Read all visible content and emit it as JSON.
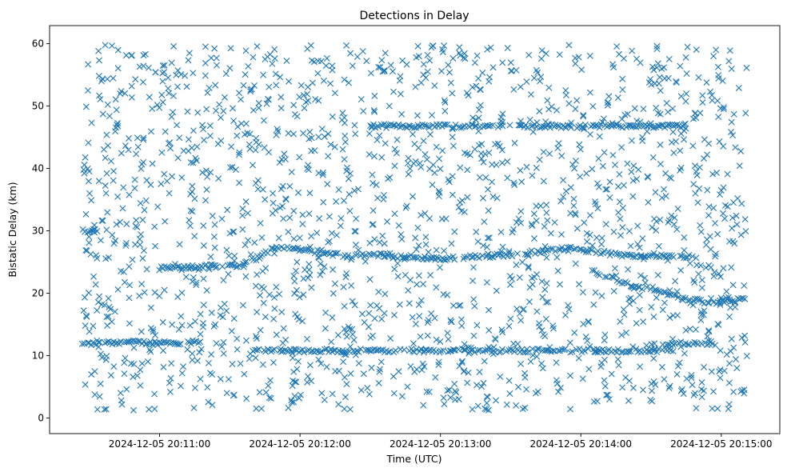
{
  "chart_data": {
    "type": "scatter",
    "title": "Detections in Delay",
    "xlabel": "Time (UTC)",
    "ylabel": "Bistatic Delay (km)",
    "x_unit": "time (UTC)",
    "xlim": [
      "2024-12-05 20:10:13",
      "2024-12-05 20:15:25"
    ],
    "ylim": [
      -2.5,
      62.9
    ],
    "xticks": [
      {
        "t": "2024-12-05 20:11:00",
        "label": "2024-12-05 20:11:00"
      },
      {
        "t": "2024-12-05 20:12:00",
        "label": "2024-12-05 20:12:00"
      },
      {
        "t": "2024-12-05 20:13:00",
        "label": "2024-12-05 20:13:00"
      },
      {
        "t": "2024-12-05 20:14:00",
        "label": "2024-12-05 20:14:00"
      },
      {
        "t": "2024-12-05 20:15:00",
        "label": "2024-12-05 20:15:00"
      }
    ],
    "yticks": [
      0,
      10,
      20,
      30,
      40,
      50,
      60
    ],
    "grid": false,
    "legend": "none",
    "marker": "x",
    "color": "#1f77b4",
    "data_range": {
      "x": [
        "2024-12-05 20:10:27",
        "2024-12-05 20:15:11"
      ],
      "y": [
        1.2,
        59.8
      ]
    },
    "tracks": [
      {
        "x": [
          "2024-12-05 20:10:27",
          "2024-12-05 20:10:45",
          "2024-12-05 20:11:00",
          "2024-12-05 20:11:18"
        ],
        "y": [
          11.8,
          12.2,
          12.0,
          12.2
        ]
      },
      {
        "x": [
          "2024-12-05 20:10:28",
          "2024-12-05 20:10:34"
        ],
        "y": [
          30.0,
          30.0
        ]
      },
      {
        "x": [
          "2024-12-05 20:11:00",
          "2024-12-05 20:11:35",
          "2024-12-05 20:11:50",
          "2024-12-05 20:12:20",
          "2024-12-05 20:12:40"
        ],
        "y": [
          24.0,
          24.5,
          27.5,
          26.0,
          26.2
        ]
      },
      {
        "x": [
          "2024-12-05 20:12:30",
          "2024-12-05 20:13:20",
          "2024-12-05 20:13:50",
          "2024-12-05 20:14:20",
          "2024-12-05 20:14:45"
        ],
        "y": [
          46.8,
          46.8,
          46.8,
          46.8,
          46.8
        ]
      },
      {
        "x": [
          "2024-12-05 20:12:40",
          "2024-12-05 20:13:00",
          "2024-12-05 20:13:30",
          "2024-12-05 20:13:55",
          "2024-12-05 20:14:20",
          "2024-12-05 20:14:50"
        ],
        "y": [
          26.0,
          25.5,
          26.2,
          27.2,
          26.0,
          25.8
        ]
      },
      {
        "x": [
          "2024-12-05 20:14:05",
          "2024-12-05 20:14:20",
          "2024-12-05 20:14:40",
          "2024-12-05 20:14:55",
          "2024-12-05 20:15:11"
        ],
        "y": [
          23.5,
          21.5,
          19.5,
          18.5,
          19.0
        ]
      },
      {
        "x": [
          "2024-12-05 20:14:35",
          "2024-12-05 20:14:57"
        ],
        "y": [
          12.0,
          12.0
        ]
      },
      {
        "x": [
          "2024-12-05 20:11:40",
          "2024-12-05 20:14:40"
        ],
        "y": [
          10.8,
          10.8
        ]
      }
    ],
    "note": "approximately 1,800 additional scattered detections spread uniformly across the plotted range"
  }
}
